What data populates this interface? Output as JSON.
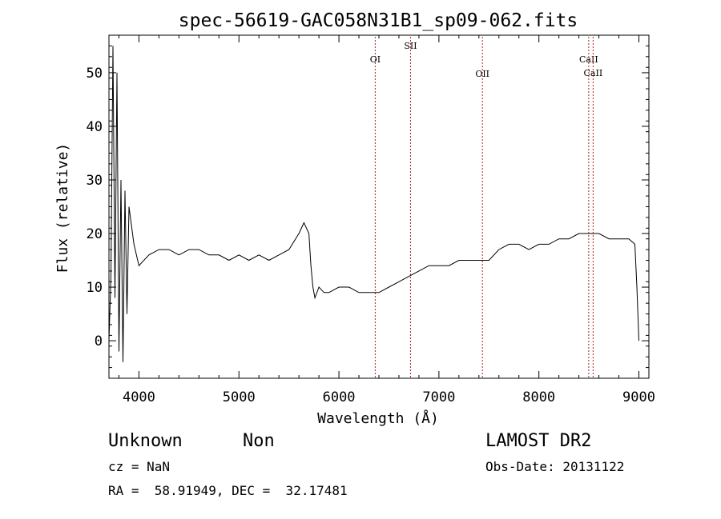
{
  "chart_data": {
    "type": "line",
    "title": "spec-56619-GAC058N31B1_sp09-062.fits",
    "xlabel": "Wavelength (Å)",
    "ylabel": "Flux (relative)",
    "xlim": [
      3700,
      9100
    ],
    "ylim": [
      -7,
      57
    ],
    "xticks": [
      4000,
      5000,
      6000,
      7000,
      8000,
      9000
    ],
    "yticks": [
      0,
      10,
      20,
      30,
      40,
      50
    ],
    "grid": false,
    "line_color": "#000000",
    "marker_color": "#aa2222",
    "lines": [
      {
        "name": "OI",
        "x": 6363
      },
      {
        "name": "SII",
        "x": 6716
      },
      {
        "name": "OII",
        "x": 7435
      },
      {
        "name": "CaII",
        "x": 8498
      },
      {
        "name": "CaII",
        "x": 8542
      }
    ],
    "series": [
      {
        "x": [
          3700,
          3720,
          3740,
          3760,
          3780,
          3800,
          3820,
          3840,
          3860,
          3880,
          3900,
          3950,
          4000,
          4100,
          4200,
          4300,
          4400,
          4500,
          4600,
          4700,
          4800,
          4900,
          5000,
          5100,
          5200,
          5300,
          5400,
          5500,
          5600,
          5650,
          5700,
          5720,
          5740,
          5760,
          5800,
          5850,
          5900,
          6000,
          6100,
          6200,
          6300,
          6400,
          6500,
          6600,
          6700,
          6800,
          6900,
          7000,
          7100,
          7200,
          7300,
          7400,
          7500,
          7600,
          7700,
          7800,
          7900,
          8000,
          8100,
          8200,
          8300,
          8400,
          8500,
          8600,
          8700,
          8800,
          8900,
          8960,
          8980,
          9000
        ],
        "y": [
          0,
          12,
          55,
          8,
          50,
          -2,
          30,
          -4,
          28,
          5,
          25,
          18,
          14,
          16,
          17,
          17,
          16,
          17,
          17,
          16,
          16,
          15,
          16,
          15,
          16,
          15,
          16,
          17,
          20,
          22,
          20,
          14,
          10,
          8,
          10,
          9,
          9,
          10,
          10,
          9,
          9,
          9,
          10,
          11,
          12,
          13,
          14,
          14,
          14,
          15,
          15,
          15,
          15,
          17,
          18,
          18,
          17,
          18,
          18,
          19,
          19,
          20,
          20,
          20,
          19,
          19,
          19,
          18,
          10,
          0
        ]
      }
    ]
  },
  "footer": {
    "object_name": "Unknown",
    "object_class": "Non",
    "survey": "LAMOST DR2",
    "cz": "cz = NaN",
    "obs_date": "Obs-Date: 20131122",
    "coords": "RA =  58.91949, DEC =  32.17481"
  }
}
